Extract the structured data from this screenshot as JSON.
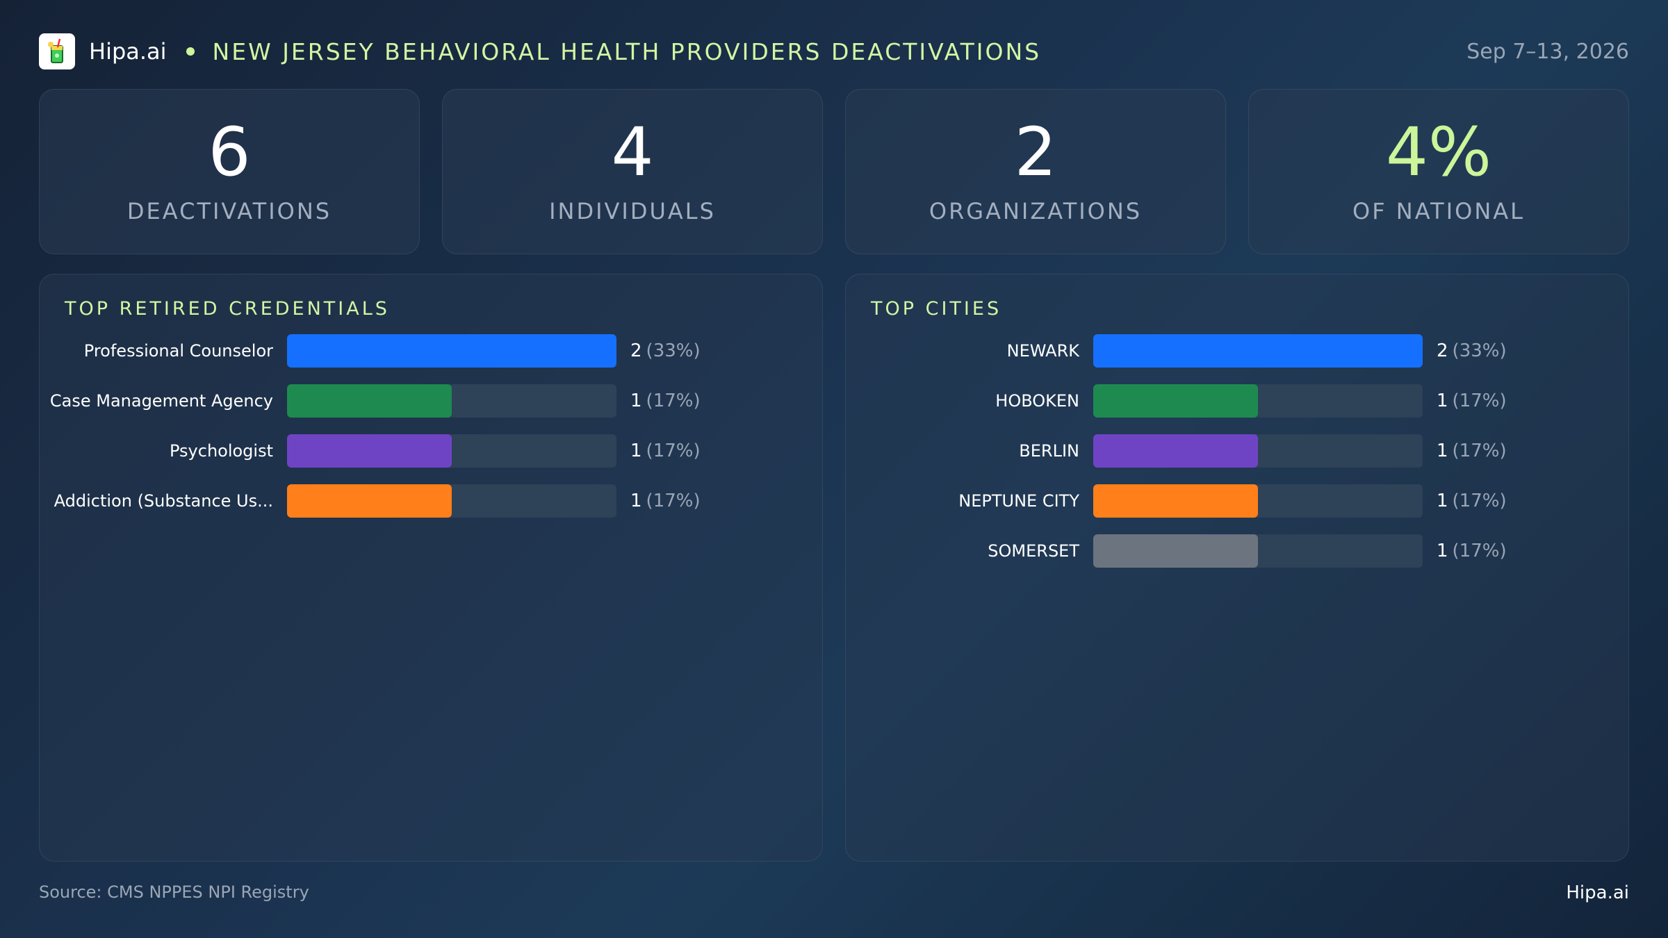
{
  "header": {
    "brand": "Hipa.ai",
    "title": "NEW JERSEY BEHAVIORAL HEALTH PROVIDERS DEACTIVATIONS",
    "date": "Sep 7–13, 2026"
  },
  "kpis": [
    {
      "value": "6",
      "label": "DEACTIVATIONS"
    },
    {
      "value": "4",
      "label": "INDIVIDUALS"
    },
    {
      "value": "2",
      "label": "ORGANIZATIONS"
    },
    {
      "value": "4%",
      "label": "OF NATIONAL"
    }
  ],
  "colors": {
    "accent": "#cdf59a",
    "blue": "#1570ff",
    "green": "#1e8a50",
    "purple": "#6f44c4",
    "orange": "#ff7f1a",
    "gray": "#6c7480",
    "track": "#2e4258"
  },
  "chart_data": [
    {
      "type": "bar",
      "orientation": "horizontal",
      "title": "TOP RETIRED CREDENTIALS",
      "categories": [
        "Professional Counselor",
        "Case Management Agency",
        "Psychologist",
        "Addiction (Substance Us..."
      ],
      "values": [
        2,
        1,
        1,
        1
      ],
      "percent_labels": [
        "(33%)",
        "(17%)",
        "(17%)",
        "(17%)"
      ],
      "colors": [
        "#1570ff",
        "#1e8a50",
        "#6f44c4",
        "#ff7f1a"
      ],
      "xlim": [
        0,
        2
      ]
    },
    {
      "type": "bar",
      "orientation": "horizontal",
      "title": "TOP CITIES",
      "categories": [
        "NEWARK",
        "HOBOKEN",
        "BERLIN",
        "NEPTUNE CITY",
        "SOMERSET"
      ],
      "values": [
        2,
        1,
        1,
        1,
        1
      ],
      "percent_labels": [
        "(33%)",
        "(17%)",
        "(17%)",
        "(17%)",
        "(17%)"
      ],
      "colors": [
        "#1570ff",
        "#1e8a50",
        "#6f44c4",
        "#ff7f1a",
        "#6c7480"
      ],
      "xlim": [
        0,
        2
      ]
    }
  ],
  "footer": {
    "source": "Source: CMS NPPES NPI Registry",
    "brand": "Hipa.ai"
  }
}
